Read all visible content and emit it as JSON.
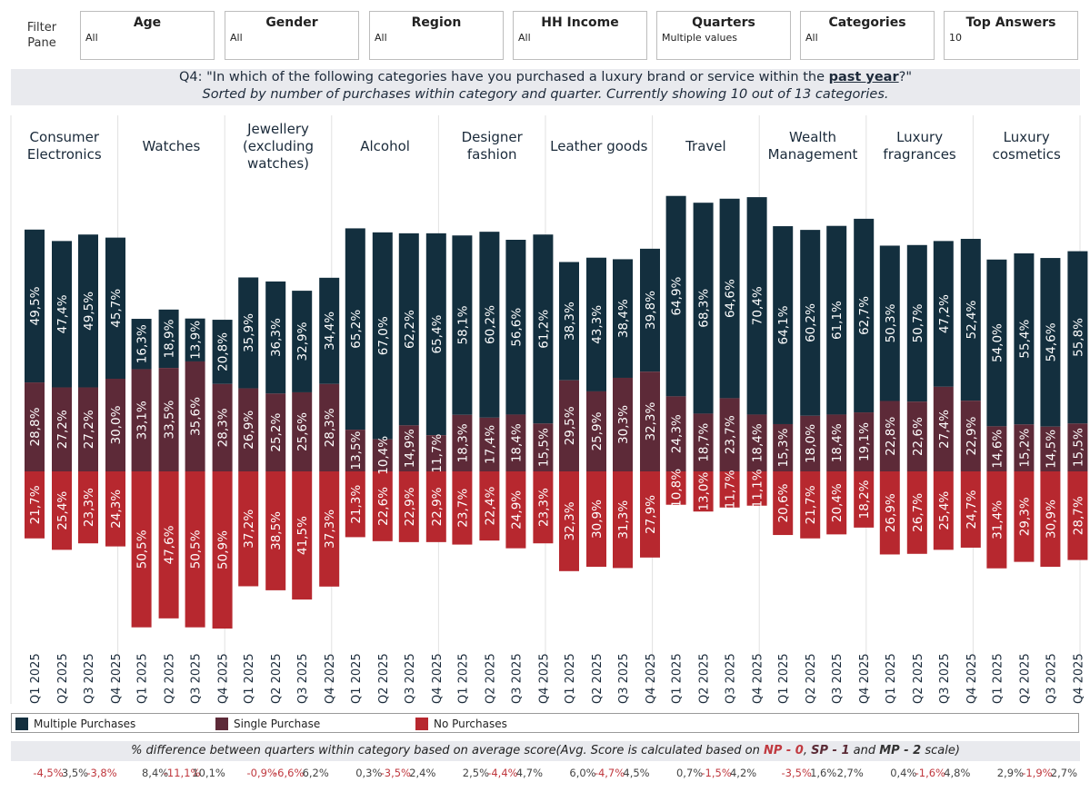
{
  "filter_pane": {
    "label_line1": "Filter",
    "label_line2": "Pane",
    "filters": [
      {
        "title": "Age",
        "value": "All"
      },
      {
        "title": "Gender",
        "value": "All"
      },
      {
        "title": "Region",
        "value": "All"
      },
      {
        "title": "HH Income",
        "value": "All"
      },
      {
        "title": "Quarters",
        "value": "Multiple values"
      },
      {
        "title": "Categories",
        "value": "All"
      },
      {
        "title": "Top Answers",
        "value": "10"
      }
    ]
  },
  "title": {
    "question_prefix": "Q4: \"In which of the following categories have you purchased a luxury brand or service within the ",
    "question_emphasis": "past year",
    "question_suffix": "?\"",
    "subtitle": "Sorted by number of purchases within category and quarter. Currently showing 10 out of 13 categories."
  },
  "legend": {
    "items": [
      {
        "label": "Multiple Purchases",
        "color": "#132f3e"
      },
      {
        "label": "Single Purchase",
        "color": "#5d2a38"
      },
      {
        "label": "No Purchases",
        "color": "#b7282f"
      }
    ]
  },
  "diff_caption": {
    "prefix": "% difference between quarters within category based on average score(Avg. Score is calculated based on ",
    "np": "NP - 0",
    "sep1": ", ",
    "sp": "SP - 1",
    "sep2": " and ",
    "mp": "MP - 2",
    "suffix": " scale)"
  },
  "chart_data": {
    "type": "bar",
    "subtype": "diverging-stacked",
    "quarters": [
      "Q1 2025",
      "Q2 2025",
      "Q3 2025",
      "Q4 2025"
    ],
    "series_names": [
      "Multiple Purchases",
      "Single Purchase",
      "No Purchases"
    ],
    "categories": [
      {
        "name": [
          "Consumer",
          "Electronics"
        ],
        "multiple": [
          49.5,
          47.4,
          49.5,
          45.7
        ],
        "single": [
          28.8,
          27.2,
          27.2,
          30.0
        ],
        "none": [
          21.7,
          25.4,
          23.3,
          24.3
        ],
        "diffs": [
          "-4,5%",
          "3,5%",
          "-3,8%"
        ]
      },
      {
        "name": [
          "Watches"
        ],
        "multiple": [
          16.3,
          18.9,
          13.9,
          20.8
        ],
        "single": [
          33.1,
          33.5,
          35.6,
          28.3
        ],
        "none": [
          50.5,
          47.6,
          50.5,
          50.9
        ],
        "diffs": [
          "8,4%",
          "-11,1%",
          "10,1%"
        ]
      },
      {
        "name": [
          "Jewellery",
          "(excluding",
          "watches)"
        ],
        "multiple": [
          35.9,
          36.3,
          32.9,
          34.4
        ],
        "single": [
          26.9,
          25.2,
          25.6,
          28.3
        ],
        "none": [
          37.2,
          38.5,
          41.5,
          37.3
        ],
        "diffs": [
          "-0,9%",
          "-6,6%",
          "6,2%"
        ]
      },
      {
        "name": [
          "Alcohol"
        ],
        "multiple": [
          65.2,
          67.0,
          62.2,
          65.4
        ],
        "single": [
          13.5,
          10.4,
          14.9,
          11.7
        ],
        "none": [
          21.3,
          22.6,
          22.9,
          22.9
        ],
        "diffs": [
          "0,3%",
          "-3,5%",
          "2,4%"
        ]
      },
      {
        "name": [
          "Designer",
          "fashion"
        ],
        "multiple": [
          58.1,
          60.2,
          56.6,
          61.2
        ],
        "single": [
          18.3,
          17.4,
          18.4,
          15.5
        ],
        "none": [
          23.7,
          22.4,
          24.9,
          23.3
        ],
        "diffs": [
          "2,5%",
          "-4,4%",
          "4,7%"
        ]
      },
      {
        "name": [
          "Leather goods"
        ],
        "multiple": [
          38.3,
          43.3,
          38.4,
          39.8
        ],
        "single": [
          29.5,
          25.9,
          30.3,
          32.3
        ],
        "none": [
          32.3,
          30.9,
          31.3,
          27.9
        ],
        "diffs": [
          "6,0%",
          "-4,7%",
          "4,5%"
        ]
      },
      {
        "name": [
          "Travel"
        ],
        "multiple": [
          64.9,
          68.3,
          64.6,
          70.4
        ],
        "single": [
          24.3,
          18.7,
          23.7,
          18.4
        ],
        "none": [
          10.8,
          13.0,
          11.7,
          11.1
        ],
        "diffs": [
          "0,7%",
          "-1,5%",
          "4,2%"
        ]
      },
      {
        "name": [
          "Wealth",
          "Management"
        ],
        "multiple": [
          64.1,
          60.2,
          61.1,
          62.7
        ],
        "single": [
          15.3,
          18.0,
          18.4,
          19.1
        ],
        "none": [
          20.6,
          21.7,
          20.4,
          18.2
        ],
        "diffs": [
          "-3,5%",
          "1,6%",
          "2,7%"
        ]
      },
      {
        "name": [
          "Luxury",
          "fragrances"
        ],
        "multiple": [
          50.3,
          50.7,
          47.2,
          52.4
        ],
        "single": [
          22.8,
          22.6,
          27.4,
          22.9
        ],
        "none": [
          26.9,
          26.7,
          25.4,
          24.7
        ],
        "diffs": [
          "0,4%",
          "-1,6%",
          "4,8%"
        ]
      },
      {
        "name": [
          "Luxury",
          "cosmetics"
        ],
        "multiple": [
          54.0,
          55.4,
          54.6,
          55.8
        ],
        "single": [
          14.6,
          15.2,
          14.5,
          15.5
        ],
        "none": [
          31.4,
          29.3,
          30.9,
          28.7
        ],
        "diffs": [
          "2,9%",
          "-1,9%",
          "2,7%"
        ]
      }
    ]
  }
}
